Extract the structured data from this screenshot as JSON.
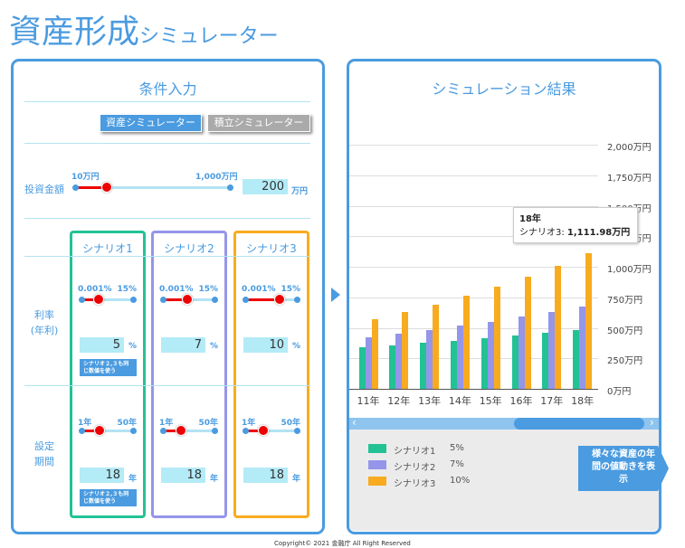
{
  "header": {
    "title_main": "資産形成",
    "title_sub": "シミュレーター"
  },
  "input_panel": {
    "title": "条件入力",
    "tabs": [
      {
        "label": "資産シミュレーター",
        "active": true
      },
      {
        "label": "積立シミュレーター",
        "active": false
      }
    ],
    "investment": {
      "label": "投資金額",
      "min_label": "10万円",
      "max_label": "1,000万円",
      "value": "200",
      "unit": "万円",
      "min": 10,
      "max": 1000
    },
    "rate_label_1": "利率",
    "rate_label_2": "(年利)",
    "period_label_1": "設定",
    "period_label_2": "期間",
    "note": "シナリオ２,３も同じ数値を使う",
    "scenarios": [
      {
        "name": "シナリオ1",
        "color": "#22c295",
        "rate_min": "0.001%",
        "rate_max": "15%",
        "rate": "5",
        "rate_unit": "%",
        "period_min": "1年",
        "period_max": "50年",
        "period": "18",
        "period_unit": "年"
      },
      {
        "name": "シナリオ2",
        "color": "#9595ea",
        "rate_min": "0.001%",
        "rate_max": "15%",
        "rate": "7",
        "rate_unit": "%",
        "period_min": "1年",
        "period_max": "50年",
        "period": "18",
        "period_unit": "年"
      },
      {
        "name": "シナリオ3",
        "color": "#f8ab1f",
        "rate_min": "0.001%",
        "rate_max": "15%",
        "rate": "10",
        "rate_unit": "%",
        "period_min": "1年",
        "period_max": "50年",
        "period": "18",
        "period_unit": "年"
      }
    ]
  },
  "result_panel": {
    "title": "シミュレーション結果",
    "tooltip": {
      "title": "18年",
      "label": "シナリオ3: ",
      "value": "1,111.98万円"
    },
    "legend": [
      {
        "name": "シナリオ1",
        "value": "5%"
      },
      {
        "name": "シナリオ2",
        "value": "7%"
      },
      {
        "name": "シナリオ3",
        "value": "10%"
      }
    ],
    "side_button": "様々な資産の年間の値動きを表示",
    "scroll_left": "‹",
    "scroll_right": "›"
  },
  "chart_data": {
    "type": "bar",
    "categories": [
      "11年",
      "12年",
      "13年",
      "14年",
      "15年",
      "16年",
      "17年",
      "18年"
    ],
    "series": [
      {
        "name": "シナリオ1",
        "color": "#22c295",
        "values": [
          342.07,
          359.17,
          377.13,
          395.99,
          415.79,
          436.57,
          458.4,
          481.32
        ]
      },
      {
        "name": "シナリオ2",
        "color": "#9595ea",
        "values": [
          420.97,
          450.44,
          481.97,
          515.71,
          551.81,
          590.43,
          631.76,
          675.98
        ]
      },
      {
        "name": "シナリオ3",
        "color": "#f8ab1f",
        "values": [
          570.62,
          627.69,
          690.45,
          759.5,
          835.45,
          918.99,
          1010.89,
          1111.98
        ]
      }
    ],
    "yticks": [
      "0万円",
      "250万円",
      "500万円",
      "750万円",
      "1,000万円",
      "1,250万円",
      "1,500万円",
      "1,750万円",
      "2,000万円"
    ],
    "ylim": [
      0,
      2000
    ]
  },
  "footer": {
    "copyright": "Copyright© 2021 金融庁 All Right Reserved"
  }
}
